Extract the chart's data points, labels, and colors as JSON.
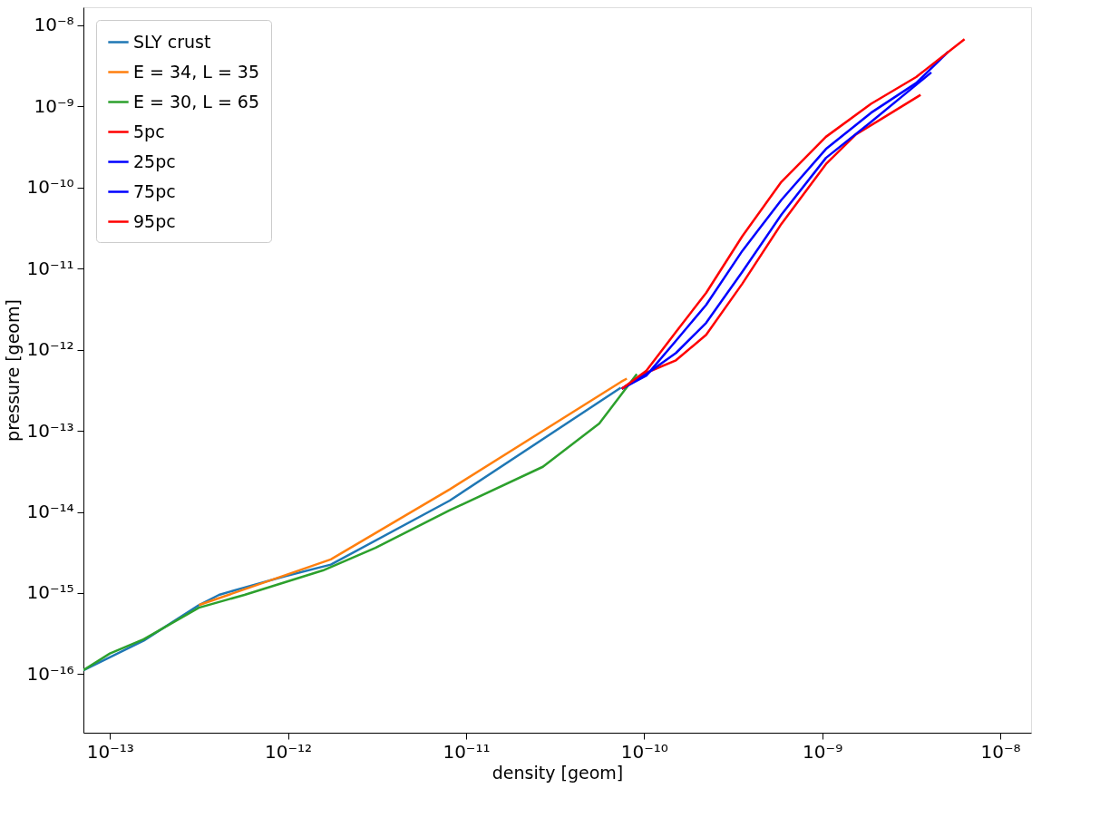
{
  "chart_data": {
    "type": "line",
    "xlabel": "density [geom]",
    "ylabel": "pressure [geom]",
    "log": "xy",
    "grid": false,
    "legend": "top left",
    "line_style": "solid",
    "marker": "none",
    "xlim": [
      7.1e-14,
      1.49e-08
    ],
    "ylim": [
      1.9e-17,
      1.66e-08
    ],
    "xticks": [
      {
        "value": 1e-13,
        "label": "10⁻¹³"
      },
      {
        "value": 1e-12,
        "label": "10⁻¹²"
      },
      {
        "value": 1e-11,
        "label": "10⁻¹¹"
      },
      {
        "value": 1e-10,
        "label": "10⁻¹⁰"
      },
      {
        "value": 1e-09,
        "label": "10⁻⁹"
      },
      {
        "value": 1e-08,
        "label": "10⁻⁸"
      }
    ],
    "yticks": [
      {
        "value": 1e-16,
        "label": "10⁻¹⁶"
      },
      {
        "value": 1e-15,
        "label": "10⁻¹⁵"
      },
      {
        "value": 1e-14,
        "label": "10⁻¹⁴"
      },
      {
        "value": 1e-13,
        "label": "10⁻¹³"
      },
      {
        "value": 1e-12,
        "label": "10⁻¹²"
      },
      {
        "value": 1e-11,
        "label": "10⁻¹¹"
      },
      {
        "value": 1e-10,
        "label": "10⁻¹⁰"
      },
      {
        "value": 1e-09,
        "label": "10⁻⁹"
      },
      {
        "value": 1e-08,
        "label": "10⁻⁸"
      }
    ],
    "series": [
      {
        "name": "SLY crust",
        "color": "#1f77b4",
        "x": [
          7.1e-14,
          1.55e-13,
          3.16e-13,
          4.1e-13,
          5.7e-13,
          9.7e-13,
          1.74e-12,
          8.1e-12,
          7.4e-11
        ],
        "values": [
          1.12e-16,
          2.6e-16,
          7.1e-16,
          9.5e-16,
          1.17e-15,
          1.62e-15,
          2.24e-15,
          1.38e-14,
          3.4e-13
        ]
      },
      {
        "name": "E = 34, L = 35",
        "color": "#ff7f0e",
        "x": [
          3.16e-13,
          1.74e-12,
          8.1e-12,
          7.4e-11,
          8e-11
        ],
        "values": [
          7.1e-16,
          2.6e-15,
          1.9e-14,
          4e-13,
          4.4e-13
        ]
      },
      {
        "name": "E = 30, L = 65",
        "color": "#2ca02c",
        "x": [
          7.1e-14,
          1e-13,
          1.55e-13,
          3.16e-13,
          5.7e-13,
          1.57e-12,
          3.1e-12,
          8.1e-12,
          2.7e-11,
          5.6e-11,
          9.1e-11
        ],
        "values": [
          1.12e-16,
          1.8e-16,
          2.7e-16,
          6.6e-16,
          9.5e-16,
          1.9e-15,
          3.6e-15,
          1.05e-14,
          3.6e-14,
          1.23e-13,
          5e-13
        ]
      },
      {
        "name": "5pc",
        "color": "#ff0000",
        "x": [
          7.5e-11,
          1.03e-10,
          1.51e-10,
          2.23e-10,
          3.56e-10,
          5.9e-10,
          1.05e-09,
          1.55e-09,
          2.29e-09,
          3.57e-09
        ],
        "values": [
          3.3e-13,
          5.2e-13,
          7.4e-13,
          1.52e-12,
          6.5e-12,
          3.55e-11,
          1.94e-10,
          4.5e-10,
          7.6e-10,
          1.38e-09
        ]
      },
      {
        "name": "25pc",
        "color": "#0000ff",
        "x": [
          7.5e-11,
          1.03e-10,
          1.51e-10,
          2.23e-10,
          3.56e-10,
          5.9e-10,
          1.05e-09,
          1.88e-09,
          4.1e-09
        ],
        "values": [
          3.3e-13,
          5e-13,
          9.1e-13,
          2.14e-12,
          9.1e-12,
          4.6e-11,
          2.31e-10,
          6.4e-10,
          2.61e-09
        ]
      },
      {
        "name": "75pc",
        "color": "#0000ff",
        "x": [
          7.5e-11,
          1.03e-10,
          1.51e-10,
          2.23e-10,
          3.56e-10,
          5.9e-10,
          1.05e-09,
          1.88e-09,
          3.37e-09,
          5.1e-09
        ],
        "values": [
          3.3e-13,
          4.8e-13,
          1.29e-12,
          3.56e-12,
          1.65e-11,
          7e-11,
          2.97e-10,
          8.3e-10,
          1.93e-09,
          4.7e-09
        ]
      },
      {
        "name": "95pc",
        "color": "#ff0000",
        "x": [
          7.5e-11,
          1.03e-10,
          1.51e-10,
          2.23e-10,
          3.56e-10,
          5.9e-10,
          1.05e-09,
          1.88e-09,
          3.37e-09,
          6.3e-09
        ],
        "values": [
          3.3e-13,
          5.5e-13,
          1.66e-12,
          5e-12,
          2.5e-11,
          1.17e-10,
          4.2e-10,
          1.07e-09,
          2.29e-09,
          6.7e-09
        ]
      }
    ]
  }
}
